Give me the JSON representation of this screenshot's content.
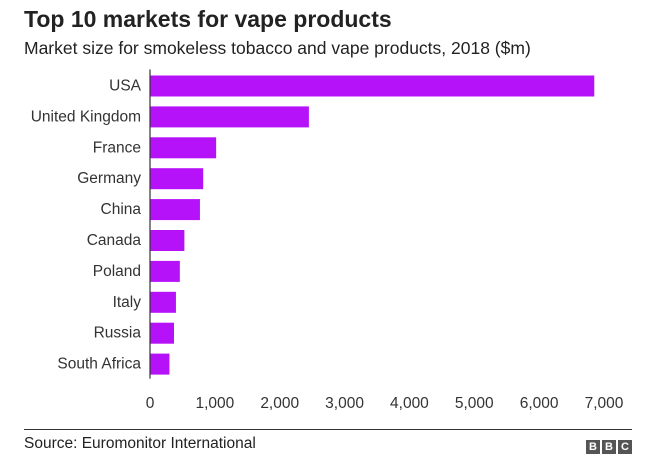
{
  "header": {
    "title": "Top 10 markets for vape products",
    "subtitle": "Market size for smokeless tobacco and vape products, 2018 ($m)"
  },
  "footer": {
    "source": "Source: Euromonitor International",
    "logo_letters": [
      "B",
      "B",
      "C"
    ]
  },
  "colors": {
    "bar": "#b512fa",
    "axis": "#333333",
    "logo": "#555555"
  },
  "chart_data": {
    "type": "bar",
    "orientation": "horizontal",
    "title": "Top 10 markets for vape products",
    "subtitle": "Market size for smokeless tobacco and vape products, 2018 ($m)",
    "categories": [
      "USA",
      "United Kingdom",
      "France",
      "Germany",
      "China",
      "Canada",
      "Poland",
      "Italy",
      "Russia",
      "South Africa"
    ],
    "values": [
      6850,
      2450,
      1020,
      820,
      770,
      530,
      460,
      400,
      370,
      300
    ],
    "xlim": [
      0,
      7000
    ],
    "xticks": [
      0,
      1000,
      2000,
      3000,
      4000,
      5000,
      6000,
      7000
    ],
    "xtick_labels": [
      "0",
      "1,000",
      "2,000",
      "3,000",
      "4,000",
      "5,000",
      "6,000",
      "7,000"
    ],
    "xlabel": "",
    "ylabel": "",
    "grid": false,
    "legend": "none"
  }
}
